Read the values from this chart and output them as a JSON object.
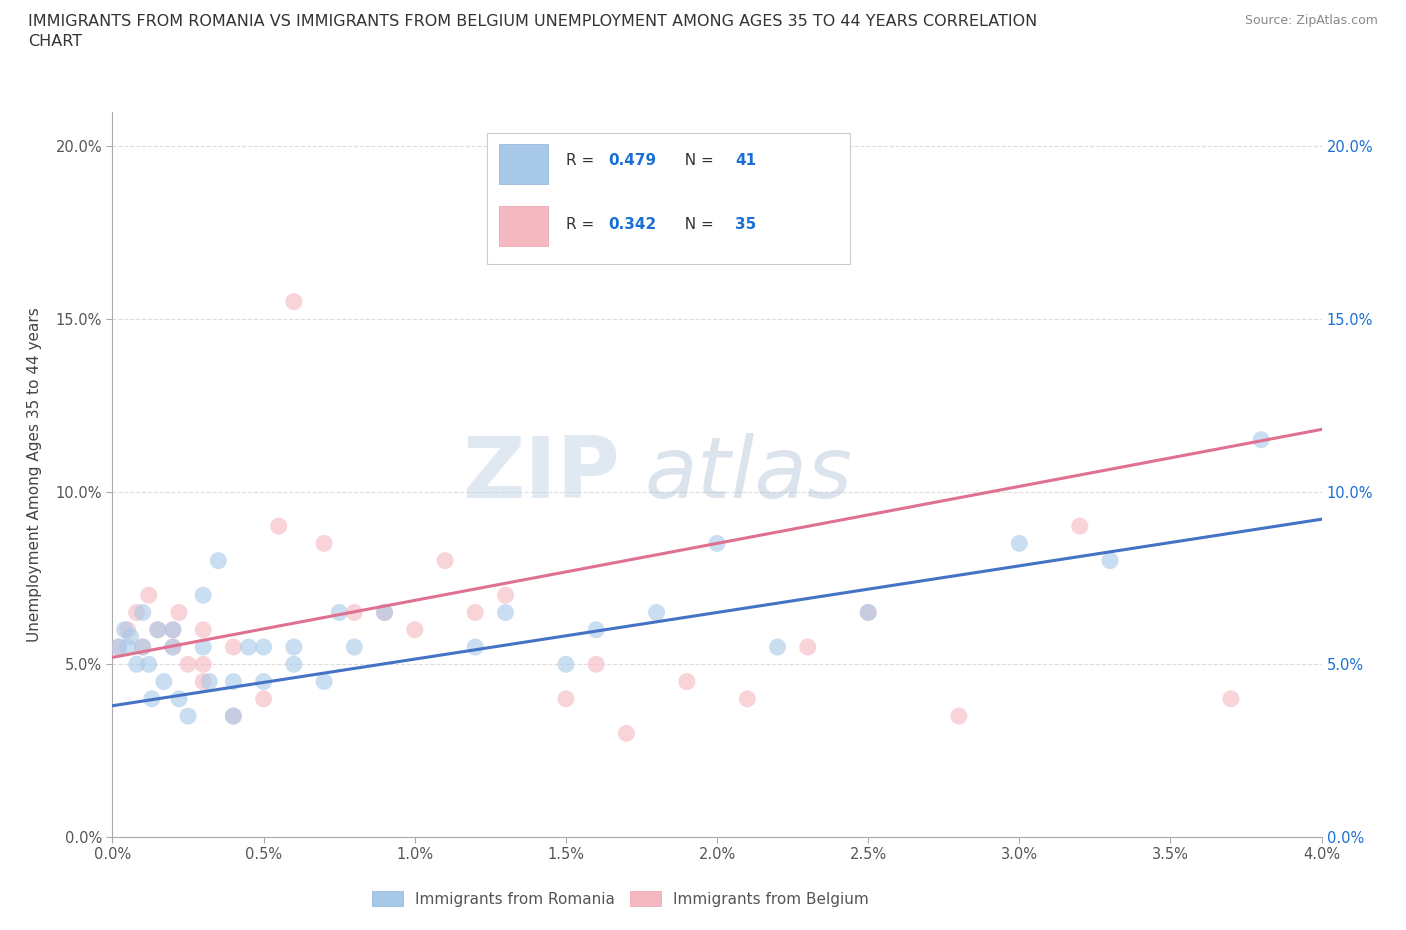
{
  "title_line1": "IMMIGRANTS FROM ROMANIA VS IMMIGRANTS FROM BELGIUM UNEMPLOYMENT AMONG AGES 35 TO 44 YEARS CORRELATION",
  "title_line2": "CHART",
  "source": "Source: ZipAtlas.com",
  "ylabel": "Unemployment Among Ages 35 to 44 years",
  "xlim": [
    0.0,
    0.04
  ],
  "ylim": [
    0.0,
    0.21
  ],
  "xticks": [
    0.0,
    0.005,
    0.01,
    0.015,
    0.02,
    0.025,
    0.03,
    0.035,
    0.04
  ],
  "yticks": [
    0.0,
    0.05,
    0.1,
    0.15,
    0.2
  ],
  "romania_r": "0.479",
  "romania_n": "41",
  "belgium_r": "0.342",
  "belgium_n": "35",
  "romania_color": "#a8c8e8",
  "belgium_color": "#f4b8c0",
  "romania_line_color": "#4472c4",
  "belgium_line_color": "#e07090",
  "romania_scatter_x": [
    0.0002,
    0.0004,
    0.0005,
    0.0006,
    0.0008,
    0.001,
    0.001,
    0.0012,
    0.0013,
    0.0015,
    0.0017,
    0.002,
    0.002,
    0.0022,
    0.0025,
    0.003,
    0.003,
    0.0032,
    0.0035,
    0.004,
    0.004,
    0.0045,
    0.005,
    0.005,
    0.006,
    0.006,
    0.007,
    0.0075,
    0.008,
    0.009,
    0.012,
    0.013,
    0.015,
    0.016,
    0.018,
    0.02,
    0.022,
    0.025,
    0.03,
    0.033,
    0.038
  ],
  "romania_scatter_y": [
    0.055,
    0.06,
    0.055,
    0.058,
    0.05,
    0.055,
    0.065,
    0.05,
    0.04,
    0.06,
    0.045,
    0.055,
    0.06,
    0.04,
    0.035,
    0.055,
    0.07,
    0.045,
    0.08,
    0.035,
    0.045,
    0.055,
    0.045,
    0.055,
    0.05,
    0.055,
    0.045,
    0.065,
    0.055,
    0.065,
    0.055,
    0.065,
    0.05,
    0.06,
    0.065,
    0.085,
    0.055,
    0.065,
    0.085,
    0.08,
    0.115
  ],
  "belgium_scatter_x": [
    0.0002,
    0.0005,
    0.0008,
    0.001,
    0.0012,
    0.0015,
    0.002,
    0.002,
    0.0022,
    0.0025,
    0.003,
    0.003,
    0.003,
    0.004,
    0.004,
    0.005,
    0.0055,
    0.006,
    0.007,
    0.008,
    0.009,
    0.01,
    0.011,
    0.012,
    0.013,
    0.015,
    0.016,
    0.017,
    0.019,
    0.021,
    0.023,
    0.025,
    0.028,
    0.032,
    0.037
  ],
  "belgium_scatter_y": [
    0.055,
    0.06,
    0.065,
    0.055,
    0.07,
    0.06,
    0.055,
    0.06,
    0.065,
    0.05,
    0.045,
    0.05,
    0.06,
    0.035,
    0.055,
    0.04,
    0.09,
    0.155,
    0.085,
    0.065,
    0.065,
    0.06,
    0.08,
    0.065,
    0.07,
    0.04,
    0.05,
    0.03,
    0.045,
    0.04,
    0.055,
    0.065,
    0.035,
    0.09,
    0.04
  ],
  "romania_trendline_x": [
    0.0,
    0.04
  ],
  "romania_trendline_y": [
    0.038,
    0.092
  ],
  "belgium_trendline_x": [
    0.0,
    0.04
  ],
  "belgium_trendline_y": [
    0.052,
    0.118
  ],
  "watermark_zip": "ZIP",
  "watermark_atlas": "atlas",
  "background_color": "#ffffff",
  "grid_color": "#dddddd",
  "legend_text_color": "#1a6fd4",
  "legend_label_color": "#333333"
}
